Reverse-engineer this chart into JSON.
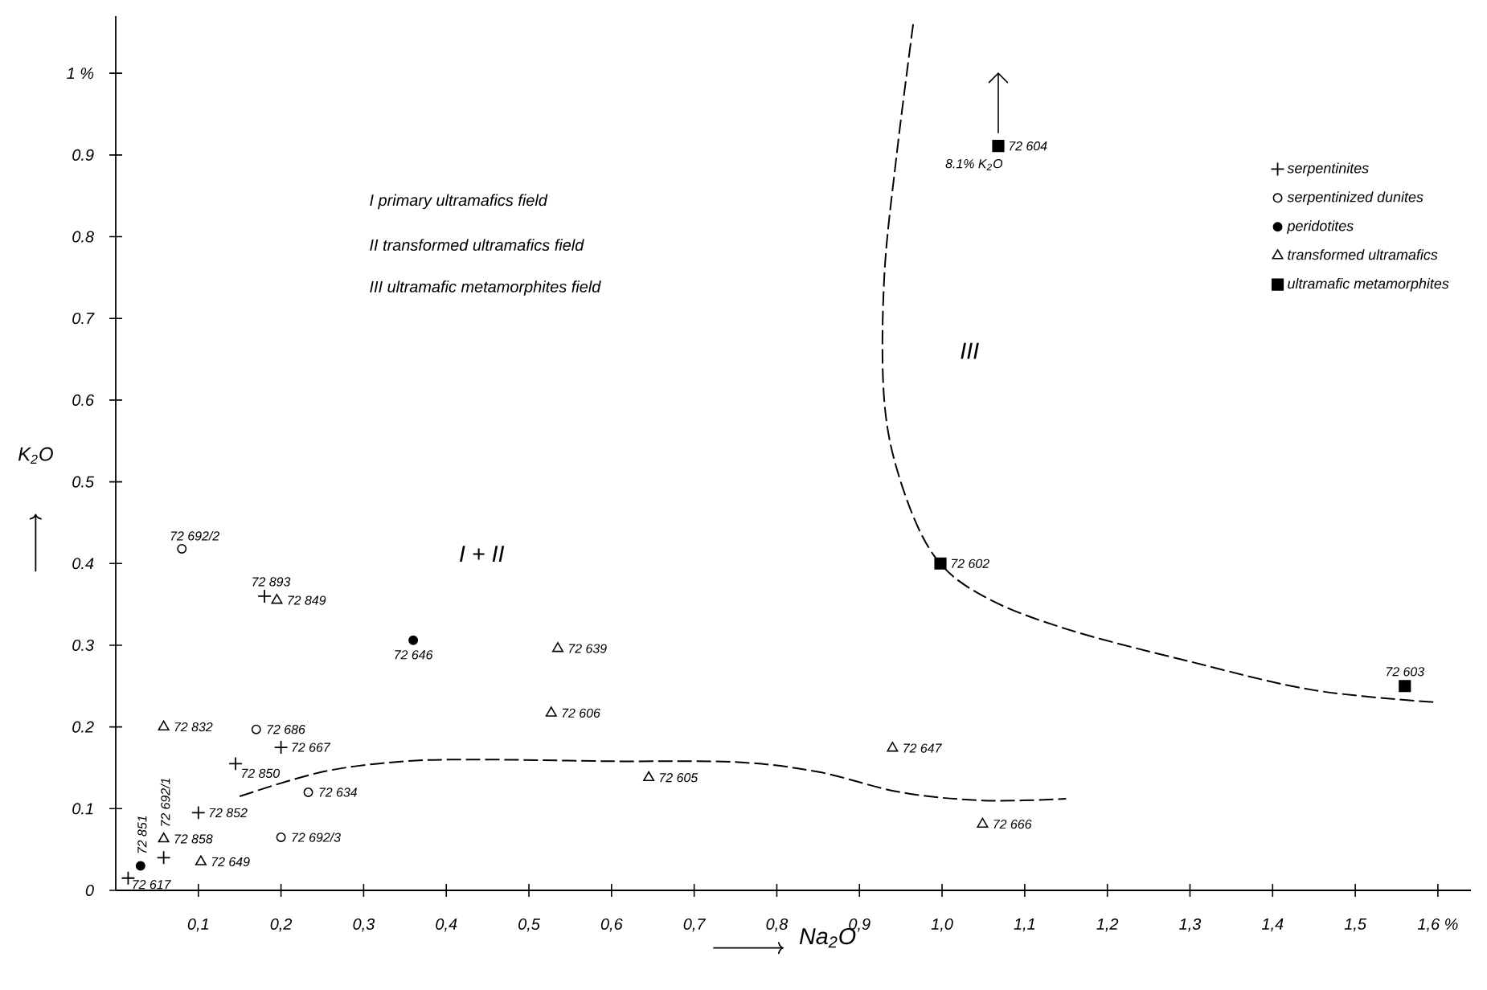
{
  "chart_data": {
    "type": "scatter",
    "xlabel": "Na$_{2}$O",
    "ylabel": "K$_{2}$O",
    "xlim": [
      0,
      1.64
    ],
    "ylim": [
      0,
      1.07
    ],
    "xticks": [
      {
        "value": 0.1,
        "label": "0,1"
      },
      {
        "value": 0.2,
        "label": "0,2"
      },
      {
        "value": 0.3,
        "label": "0,3"
      },
      {
        "value": 0.4,
        "label": "0,4"
      },
      {
        "value": 0.5,
        "label": "0,5"
      },
      {
        "value": 0.6,
        "label": "0,6"
      },
      {
        "value": 0.7,
        "label": "0,7"
      },
      {
        "value": 0.8,
        "label": "0,8"
      },
      {
        "value": 0.9,
        "label": "0,9"
      },
      {
        "value": 1.0,
        "label": "1,0"
      },
      {
        "value": 1.1,
        "label": "1,1"
      },
      {
        "value": 1.2,
        "label": "1,2"
      },
      {
        "value": 1.3,
        "label": "1,3"
      },
      {
        "value": 1.4,
        "label": "1,4"
      },
      {
        "value": 1.5,
        "label": "1,5"
      },
      {
        "value": 1.6,
        "label": "1,6 %"
      }
    ],
    "yticks": [
      0,
      0.1,
      0.2,
      0.3,
      0.4,
      0.5,
      0.6,
      0.7,
      0.8,
      0.9,
      {
        "value": 1,
        "label": "1 %"
      }
    ],
    "legend": "top right",
    "series": [
      {
        "name": "serpentinites",
        "marker": "cross",
        "color": "#000000",
        "x": [
          0.015,
          0.058,
          0.1,
          0.145,
          0.2,
          0.18
        ],
        "values": [
          0.015,
          0.04,
          0.095,
          0.155,
          0.175,
          0.36
        ]
      },
      {
        "name": "serpentinized dunites",
        "marker": "circle",
        "color": "#ffffff",
        "x": [
          0.08,
          0.17,
          0.233,
          0.2
        ],
        "values": [
          0.418,
          0.197,
          0.12,
          0.065
        ]
      },
      {
        "name": "peridotites",
        "marker": "circle",
        "color": "#000000",
        "x": [
          0.36,
          0.03
        ],
        "values": [
          0.306,
          0.03
        ]
      },
      {
        "name": "transformed ultramafics",
        "marker": "triangle",
        "color": "#ffffff",
        "x": [
          0.058,
          0.058,
          0.103,
          0.195,
          0.535,
          0.527,
          0.645,
          0.94,
          1.049
        ],
        "values": [
          0.2,
          0.063,
          0.035,
          0.355,
          0.296,
          0.217,
          0.138,
          0.174,
          0.081
        ]
      },
      {
        "name": "ultramafic metamorphites",
        "marker": "square",
        "color": "#000000",
        "x": [
          0.998,
          1.56,
          1.068
        ],
        "values": [
          0.4,
          0.25,
          0.911
        ]
      },
      {
        "type": "line",
        "line_style": "dashed",
        "color": "#000000",
        "x": [
          0.965,
          0.945,
          0.93,
          0.93,
          0.95,
          0.99,
          1.05,
          1.15,
          1.3,
          1.45,
          1.6
        ],
        "values": [
          1.06,
          0.9,
          0.75,
          0.6,
          0.5,
          0.41,
          0.36,
          0.32,
          0.28,
          0.245,
          0.23
        ]
      },
      {
        "type": "line",
        "line_style": "dashed",
        "color": "#000000",
        "x": [
          0.15,
          0.25,
          0.35,
          0.45,
          0.6,
          0.75,
          0.85,
          0.95,
          1.05,
          1.15
        ],
        "values": [
          0.115,
          0.145,
          0.158,
          0.16,
          0.158,
          0.157,
          0.145,
          0.12,
          0.11,
          0.112
        ]
      }
    ],
    "annotations": [
      {
        "text": "72 617",
        "x": 0.015,
        "y": 0.015
      },
      {
        "text": "72 851",
        "x": 0.03,
        "y": 0.03
      },
      {
        "text": "72 692/1",
        "x": 0.058,
        "y": 0.063
      },
      {
        "text": "72 858",
        "x": 0.058,
        "y": 0.063
      },
      {
        "text": "72 649",
        "x": 0.103,
        "y": 0.035
      },
      {
        "text": "72 852",
        "x": 0.1,
        "y": 0.095
      },
      {
        "text": "72 850",
        "x": 0.145,
        "y": 0.155
      },
      {
        "text": "72 667",
        "x": 0.2,
        "y": 0.175
      },
      {
        "text": "72 893",
        "x": 0.18,
        "y": 0.36
      },
      {
        "text": "72 849",
        "x": 0.195,
        "y": 0.355
      },
      {
        "text": "72 692/2",
        "x": 0.08,
        "y": 0.418
      },
      {
        "text": "72 686",
        "x": 0.17,
        "y": 0.197
      },
      {
        "text": "72 634",
        "x": 0.233,
        "y": 0.12
      },
      {
        "text": "72 692/3",
        "x": 0.2,
        "y": 0.065
      },
      {
        "text": "72 646",
        "x": 0.36,
        "y": 0.306
      },
      {
        "text": "72 832",
        "x": 0.058,
        "y": 0.2
      },
      {
        "text": "72 639",
        "x": 0.535,
        "y": 0.296
      },
      {
        "text": "72 606",
        "x": 0.527,
        "y": 0.217
      },
      {
        "text": "72 605",
        "x": 0.645,
        "y": 0.138
      },
      {
        "text": "72 647",
        "x": 0.94,
        "y": 0.174
      },
      {
        "text": "72 666",
        "x": 1.049,
        "y": 0.081
      },
      {
        "text": "72 602",
        "x": 0.998,
        "y": 0.4
      },
      {
        "text": "72 603",
        "x": 1.56,
        "y": 0.25
      },
      {
        "text": "72 604",
        "x": 1.068,
        "y": 0.911
      },
      {
        "text": "8.1% K$_{2}$O",
        "x": 1.068,
        "y": 0.911
      },
      "I + II",
      "III",
      "I primary ultramafics field",
      "II transformed ultramafics field",
      "III ultramafic metamorphites field"
    ]
  }
}
